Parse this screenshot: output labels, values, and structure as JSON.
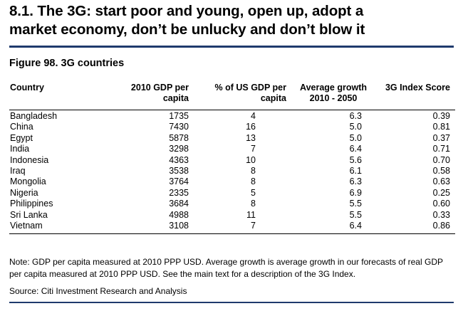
{
  "section": {
    "heading_line1": "8.1. The 3G: start poor and young, open up, adopt a",
    "heading_line2": "market economy, don’t be unlucky and don’t blow it"
  },
  "figure": {
    "title": "Figure 98. 3G countries"
  },
  "table": {
    "headers": {
      "country": "Country",
      "gdp_line1": "2010 GDP per",
      "gdp_line2": "capita",
      "pct_line1": "% of US GDP per",
      "pct_line2": "capita",
      "growth_line1": "Average growth",
      "growth_line2": "2010 - 2050",
      "score": "3G Index Score"
    },
    "rows": [
      {
        "country": "Bangladesh",
        "gdp": "1735",
        "pct": "4",
        "growth": "6.3",
        "score": "0.39"
      },
      {
        "country": "China",
        "gdp": "7430",
        "pct": "16",
        "growth": "5.0",
        "score": "0.81"
      },
      {
        "country": "Egypt",
        "gdp": "5878",
        "pct": "13",
        "growth": "5.0",
        "score": "0.37"
      },
      {
        "country": "India",
        "gdp": "3298",
        "pct": "7",
        "growth": "6.4",
        "score": "0.71"
      },
      {
        "country": "Indonesia",
        "gdp": "4363",
        "pct": "10",
        "growth": "5.6",
        "score": "0.70"
      },
      {
        "country": "Iraq",
        "gdp": "3538",
        "pct": "8",
        "growth": "6.1",
        "score": "0.58"
      },
      {
        "country": "Mongolia",
        "gdp": "3764",
        "pct": "8",
        "growth": "6.3",
        "score": "0.63"
      },
      {
        "country": "Nigeria",
        "gdp": "2335",
        "pct": "5",
        "growth": "6.9",
        "score": "0.25"
      },
      {
        "country": "Philippines",
        "gdp": "3684",
        "pct": "8",
        "growth": "5.5",
        "score": "0.60"
      },
      {
        "country": "Sri Lanka",
        "gdp": "4988",
        "pct": "11",
        "growth": "5.5",
        "score": "0.33"
      },
      {
        "country": "Vietnam",
        "gdp": "3108",
        "pct": "7",
        "growth": "6.4",
        "score": "0.86"
      }
    ]
  },
  "note": "Note: GDP per capita measured at 2010 PPP USD. Average growth is average growth in our forecasts of real GDP per capita measured at 2010 PPP USD. See the main text for a description of the 3G Index.",
  "source": "Source: Citi Investment Research and Analysis",
  "colors": {
    "rule_blue": "#1f3a6d"
  }
}
